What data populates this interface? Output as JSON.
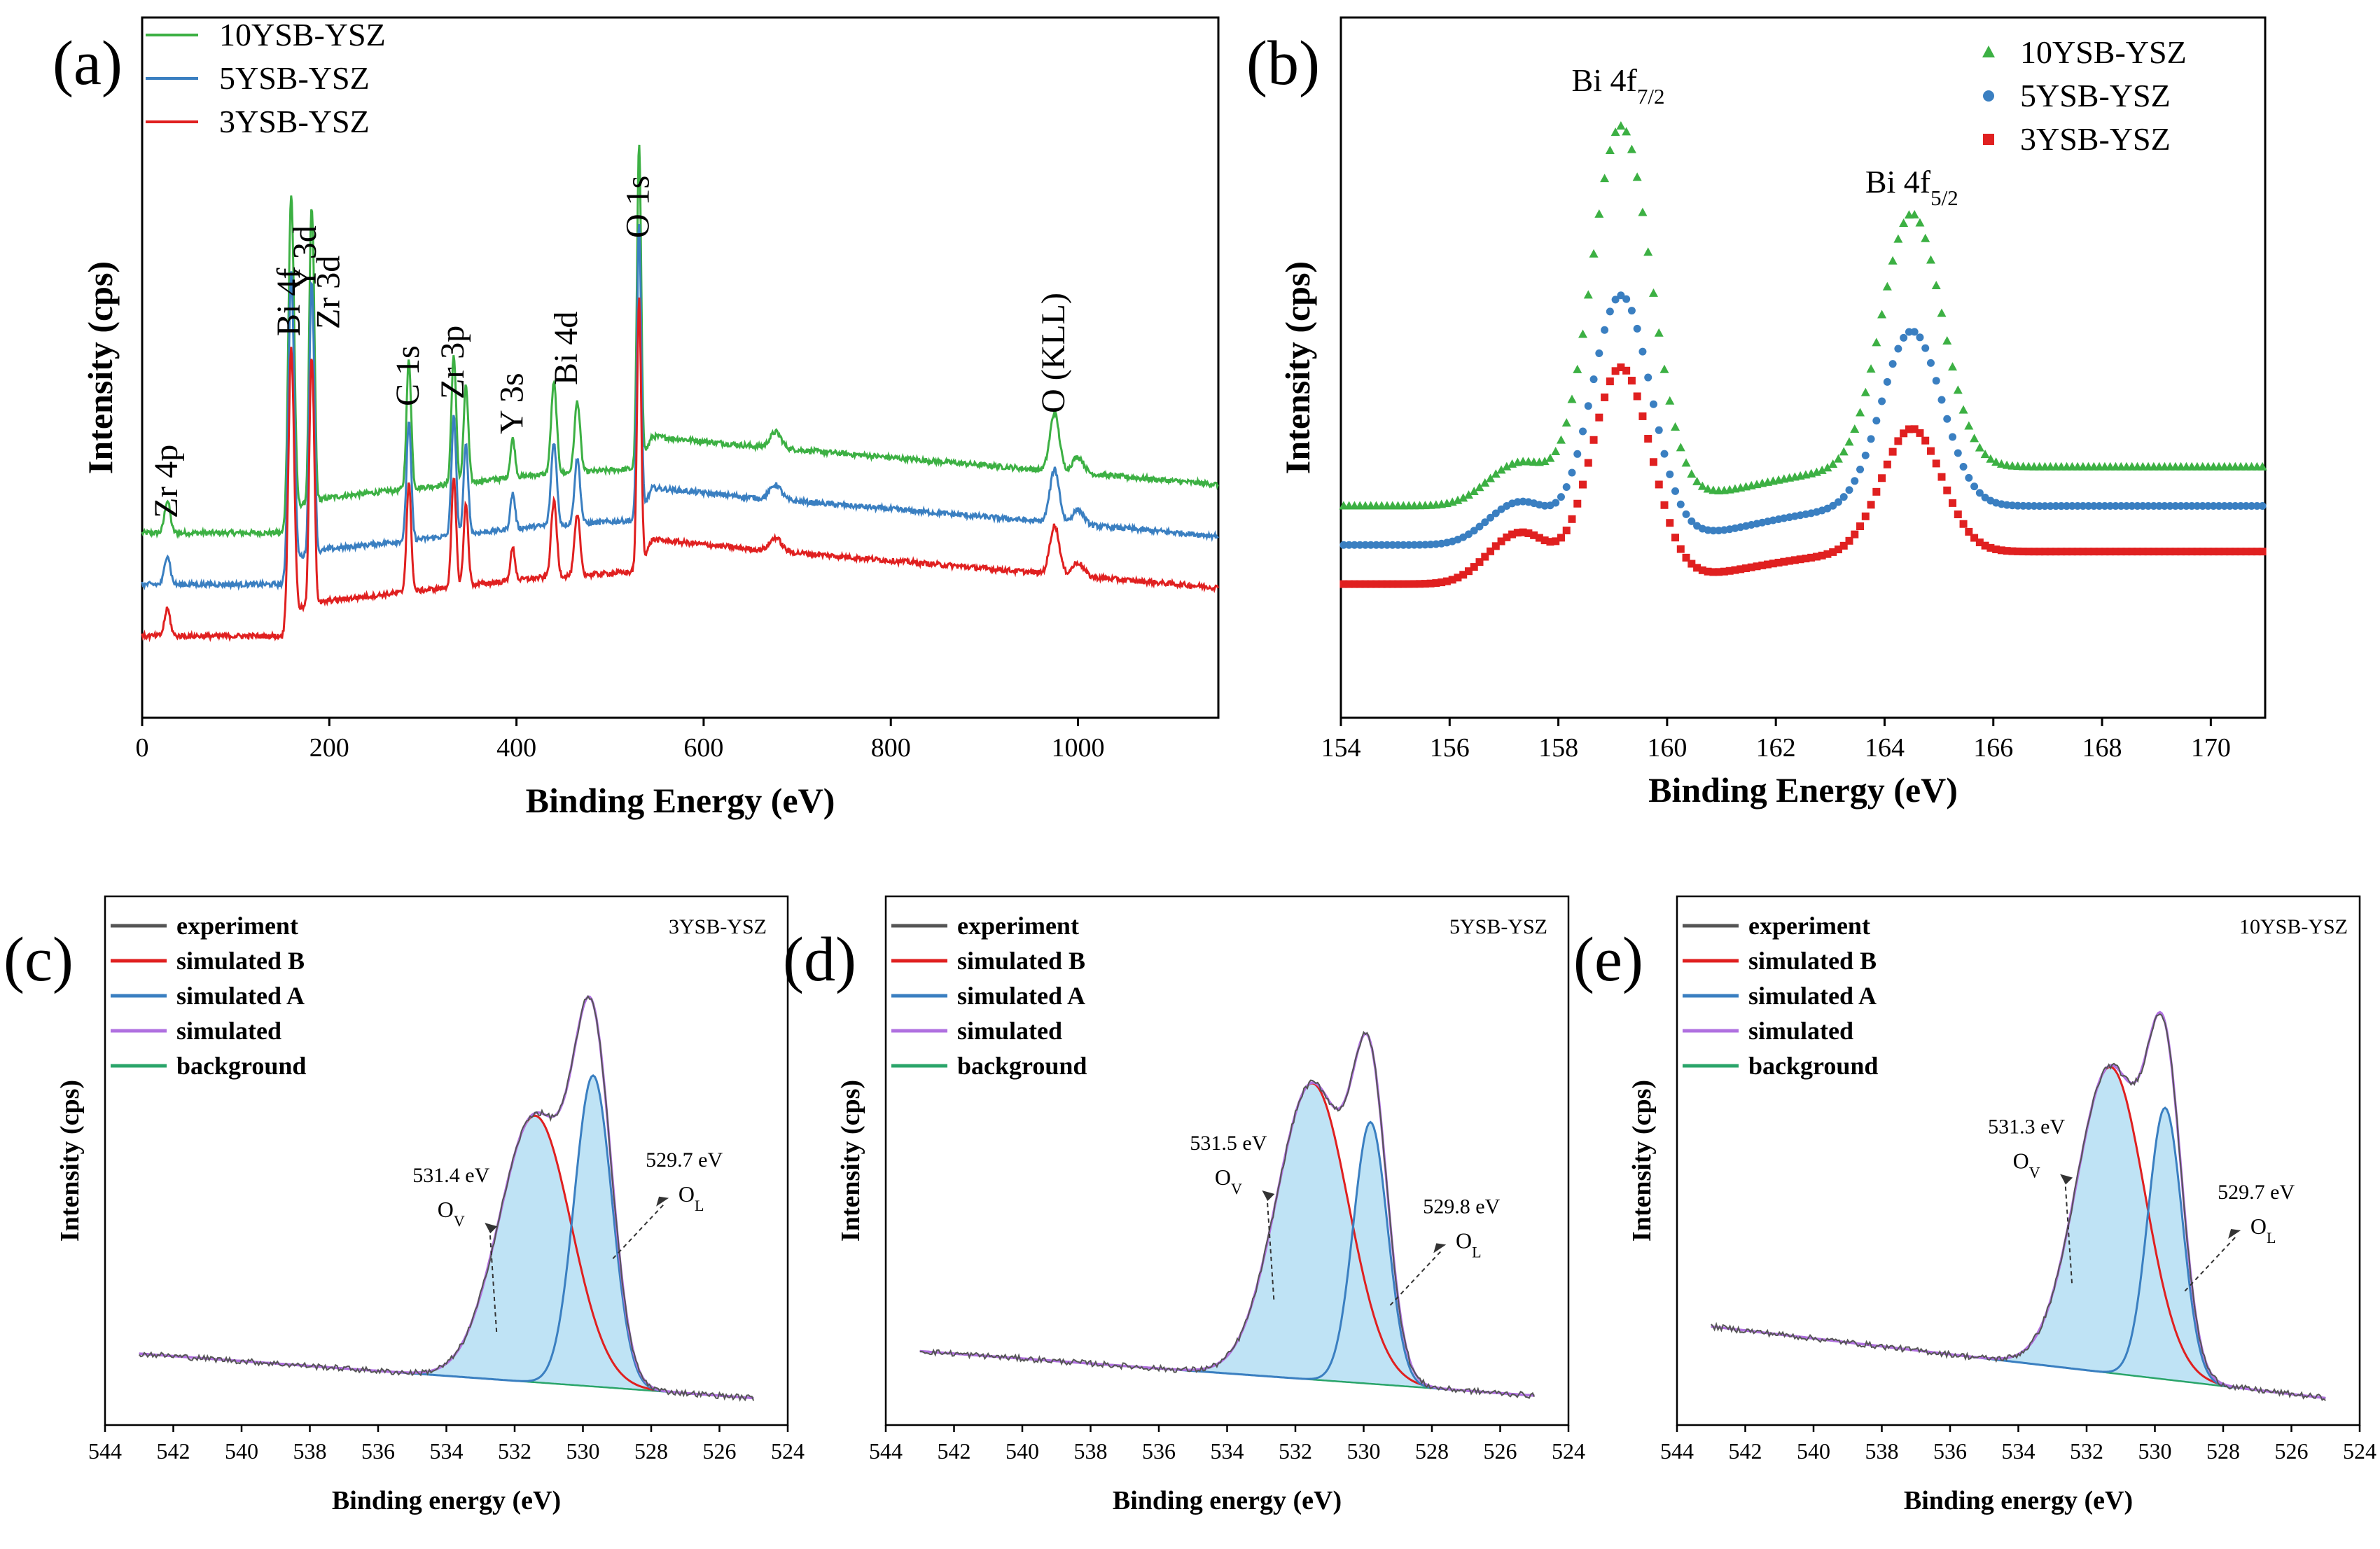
{
  "colors": {
    "green": "#3cb043",
    "blue": "#3a7fc1",
    "red": "#e02020",
    "purple": "#b070e0",
    "gray": "#555555",
    "bgline": "#2aa56a",
    "fill": "#bfe3f5"
  },
  "chart_data": [
    {
      "id": "a",
      "panel_label": "(a)",
      "type": "line",
      "xlabel": "Binding Energy (eV)",
      "ylabel": "Intensity (cps)",
      "xlim": [
        0,
        1150
      ],
      "xticks": [
        0,
        200,
        400,
        600,
        800,
        1000
      ],
      "ylim": [
        0,
        100
      ],
      "legend": [
        {
          "name": "10YSB-YSZ",
          "color": "green"
        },
        {
          "name": "5YSB-YSZ",
          "color": "blue"
        },
        {
          "name": "3YSB-YSZ",
          "color": "red"
        }
      ],
      "series": [
        {
          "name": "10YSB-YSZ",
          "offset": 20,
          "color": "green"
        },
        {
          "name": "5YSB-YSZ",
          "offset": 12,
          "color": "blue"
        },
        {
          "name": "3YSB-YSZ",
          "offset": 4,
          "color": "red"
        }
      ],
      "baseline": [
        [
          0,
          0
        ],
        [
          150,
          0
        ],
        [
          160,
          4
        ],
        [
          200,
          5.5
        ],
        [
          420,
          9
        ],
        [
          530,
          10
        ],
        [
          545,
          15
        ],
        [
          650,
          13.5
        ],
        [
          900,
          10.5
        ],
        [
          1150,
          7.5
        ]
      ],
      "peaks": [
        [
          27,
          5,
          3
        ],
        [
          158,
          32,
          2.5
        ],
        [
          161,
          26,
          2.5
        ],
        [
          180,
          33,
          2
        ],
        [
          183,
          27,
          2
        ],
        [
          285,
          20,
          2.5
        ],
        [
          333,
          20,
          2.5
        ],
        [
          346,
          15,
          2.5
        ],
        [
          396,
          6,
          2.5
        ],
        [
          440,
          14,
          3
        ],
        [
          465,
          11,
          3
        ],
        [
          531,
          50,
          2.2
        ],
        [
          677,
          2.5,
          6
        ],
        [
          975,
          9,
          5
        ],
        [
          1000,
          2.5,
          6
        ]
      ],
      "annotations": [
        {
          "text": "Zr 4p",
          "x": 27
        },
        {
          "text": "Bi 4f",
          "x": 158
        },
        {
          "text": "Y 3d",
          "x": 175
        },
        {
          "text": "Zr 3d",
          "x": 200
        },
        {
          "text": "C 1s",
          "x": 285
        },
        {
          "text": "Zr 3p",
          "x": 333
        },
        {
          "text": "Y 3s",
          "x": 396
        },
        {
          "text": "Bi 4d",
          "x": 454
        },
        {
          "text": "O 1s",
          "x": 531
        },
        {
          "text": "O (KLL)",
          "x": 975
        }
      ]
    },
    {
      "id": "b",
      "panel_label": "(b)",
      "type": "scatter",
      "xlabel": "Binding Energy (eV)",
      "ylabel": "Intensity (cps)",
      "xlim": [
        154,
        171
      ],
      "xticks": [
        154,
        156,
        158,
        160,
        162,
        164,
        166,
        168,
        170
      ],
      "ylim": [
        0,
        100
      ],
      "legend": [
        {
          "name": "10YSB-YSZ",
          "color": "green",
          "marker": "triangle"
        },
        {
          "name": "5YSB-YSZ",
          "color": "blue",
          "marker": "circle"
        },
        {
          "name": "3YSB-YSZ",
          "color": "red",
          "marker": "square"
        }
      ],
      "series": [
        {
          "name": "10YSB-YSZ",
          "marker": "triangle",
          "color": "green",
          "base_left": 25,
          "base_right": 31,
          "peak1": 58,
          "peak2": 39,
          "shoulder": 5
        },
        {
          "name": "5YSB-YSZ",
          "marker": "circle",
          "color": "blue",
          "base_left": 19,
          "base_right": 25,
          "peak1": 38,
          "peak2": 27,
          "shoulder": 5
        },
        {
          "name": "3YSB-YSZ",
          "marker": "square",
          "color": "red",
          "base_left": 13,
          "base_right": 18,
          "peak1": 33,
          "peak2": 19,
          "shoulder": 6
        }
      ],
      "annotations": [
        {
          "text": "Bi 4f",
          "sub": "7/2",
          "x": 159.1
        },
        {
          "text": "Bi 4f",
          "sub": "5/2",
          "x": 164.5
        }
      ]
    },
    {
      "id": "c",
      "panel_label": "(c)",
      "sample": "3YSB-YSZ",
      "type": "line",
      "xlabel": "Binding energy (eV)",
      "ylabel": "Intensity (cps)",
      "xlim": [
        544,
        524
      ],
      "xticks": [
        544,
        542,
        540,
        538,
        536,
        534,
        532,
        530,
        528,
        526,
        524
      ],
      "ylim": [
        0,
        100
      ],
      "legend": [
        "experiment",
        "simulated  B",
        "simulated  A",
        "simulated",
        "background"
      ],
      "bg_left": 9.5,
      "bg_right": 0.5,
      "peak_B": {
        "center": 531.4,
        "height": 54,
        "sigma": 1.05
      },
      "peak_A": {
        "center": 529.7,
        "height": 63,
        "sigma": 0.55
      },
      "label_B": {
        "energy": "531.4 eV",
        "state": "O",
        "sub": "V"
      },
      "label_A": {
        "energy": "529.7 eV",
        "state": "O",
        "sub": "L"
      }
    },
    {
      "id": "d",
      "panel_label": "(d)",
      "sample": "5YSB-YSZ",
      "type": "line",
      "xlabel": "Binding energy (eV)",
      "ylabel": "Intensity (cps)",
      "xlim": [
        544,
        524
      ],
      "xticks": [
        544,
        542,
        540,
        538,
        536,
        534,
        532,
        530,
        528,
        526,
        524
      ],
      "ylim": [
        0,
        100
      ],
      "legend": [
        "experiment",
        "simulated  B",
        "simulated  A",
        "simulated",
        "background"
      ],
      "bg_left": 10,
      "bg_right": 1,
      "peak_B": {
        "center": 531.5,
        "height": 60,
        "sigma": 1.05
      },
      "peak_A": {
        "center": 529.8,
        "height": 53,
        "sigma": 0.5
      },
      "label_B": {
        "energy": "531.5 eV",
        "state": "O",
        "sub": "V"
      },
      "label_A": {
        "energy": "529.8 eV",
        "state": "O",
        "sub": "L"
      }
    },
    {
      "id": "e",
      "panel_label": "(e)",
      "sample": "10YSB-YSZ",
      "type": "line",
      "xlabel": "Binding energy (eV)",
      "ylabel": "Intensity (cps)",
      "xlim": [
        544,
        524
      ],
      "xticks": [
        544,
        542,
        540,
        538,
        536,
        534,
        532,
        530,
        528,
        526,
        524
      ],
      "ylim": [
        0,
        100
      ],
      "legend": [
        "experiment",
        "simulated  B",
        "simulated  A",
        "simulated",
        "background"
      ],
      "bg_left": 15,
      "bg_right": 0.5,
      "peak_B": {
        "center": 531.3,
        "height": 62,
        "sigma": 1.0
      },
      "peak_A": {
        "center": 529.7,
        "height": 55,
        "sigma": 0.5
      },
      "label_B": {
        "energy": "531.3 eV",
        "state": "O",
        "sub": "V"
      },
      "label_A": {
        "energy": "529.7 eV",
        "state": "O",
        "sub": "L"
      }
    }
  ]
}
